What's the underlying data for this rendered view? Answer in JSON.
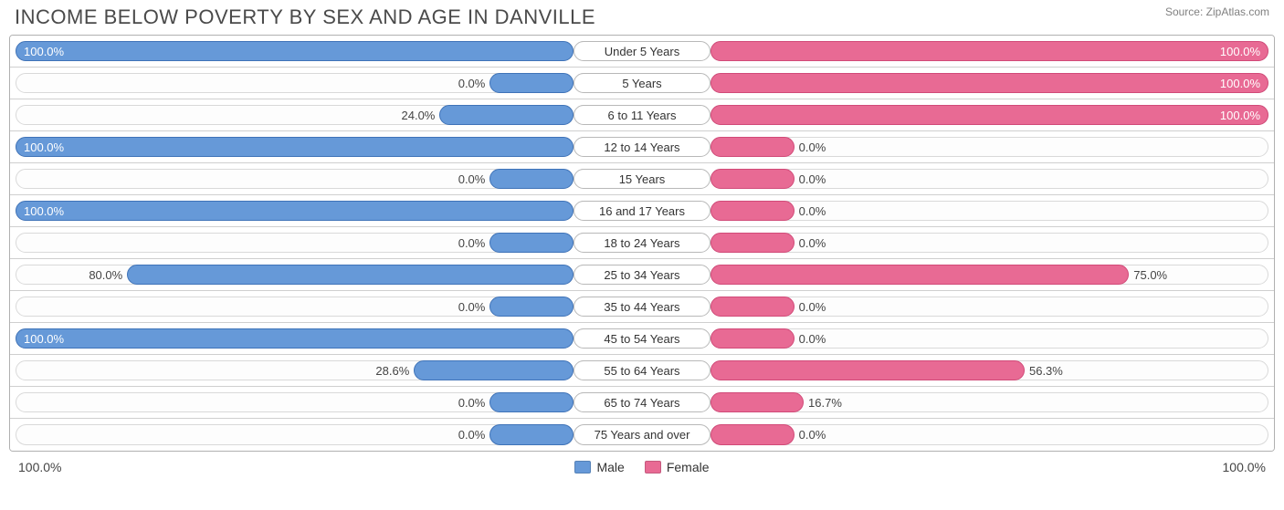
{
  "title": "INCOME BELOW POVERTY BY SEX AND AGE IN DANVILLE",
  "source": "Source: ZipAtlas.com",
  "colors": {
    "male": "#6699d8",
    "male_border": "#3f73b8",
    "female": "#e86a94",
    "female_border": "#d14a78",
    "track_border": "#d9d9d9",
    "row_border": "#cfcfcf",
    "text": "#444444"
  },
  "axis": {
    "left": "100.0%",
    "right": "100.0%"
  },
  "legend": {
    "male": "Male",
    "female": "Female"
  },
  "min_bar_pct": 15,
  "categories": [
    {
      "label": "Under 5 Years",
      "male": 100.0,
      "female": 100.0
    },
    {
      "label": "5 Years",
      "male": 0.0,
      "female": 100.0
    },
    {
      "label": "6 to 11 Years",
      "male": 24.0,
      "female": 100.0
    },
    {
      "label": "12 to 14 Years",
      "male": 100.0,
      "female": 0.0
    },
    {
      "label": "15 Years",
      "male": 0.0,
      "female": 0.0
    },
    {
      "label": "16 and 17 Years",
      "male": 100.0,
      "female": 0.0
    },
    {
      "label": "18 to 24 Years",
      "male": 0.0,
      "female": 0.0
    },
    {
      "label": "25 to 34 Years",
      "male": 80.0,
      "female": 75.0
    },
    {
      "label": "35 to 44 Years",
      "male": 0.0,
      "female": 0.0
    },
    {
      "label": "45 to 54 Years",
      "male": 100.0,
      "female": 0.0
    },
    {
      "label": "55 to 64 Years",
      "male": 28.6,
      "female": 56.3
    },
    {
      "label": "65 to 74 Years",
      "male": 0.0,
      "female": 16.7
    },
    {
      "label": "75 Years and over",
      "male": 0.0,
      "female": 0.0
    }
  ]
}
